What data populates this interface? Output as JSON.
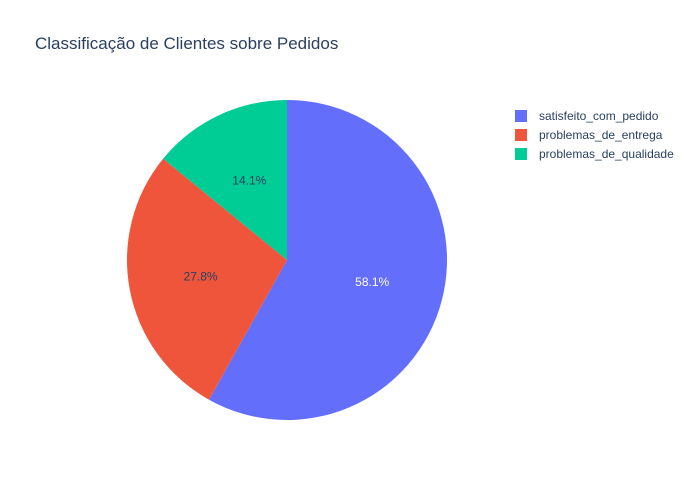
{
  "chart_data": {
    "type": "pie",
    "title": "Classificação de Clientes sobre Pedidos",
    "slices": [
      {
        "label": "satisfeito_com_pedido",
        "value": 58.1,
        "text": "58.1%",
        "color": "#636efa"
      },
      {
        "label": "problemas_de_entrega",
        "value": 27.8,
        "text": "27.8%",
        "color": "#ef553b"
      },
      {
        "label": "problemas_de_qualidade",
        "value": 14.1,
        "text": "14.1%",
        "color": "#00cc96"
      }
    ],
    "legend_position": "right",
    "start_angle": "12 o'clock",
    "direction": "clockwise",
    "text_color": "#2a3f5f"
  }
}
